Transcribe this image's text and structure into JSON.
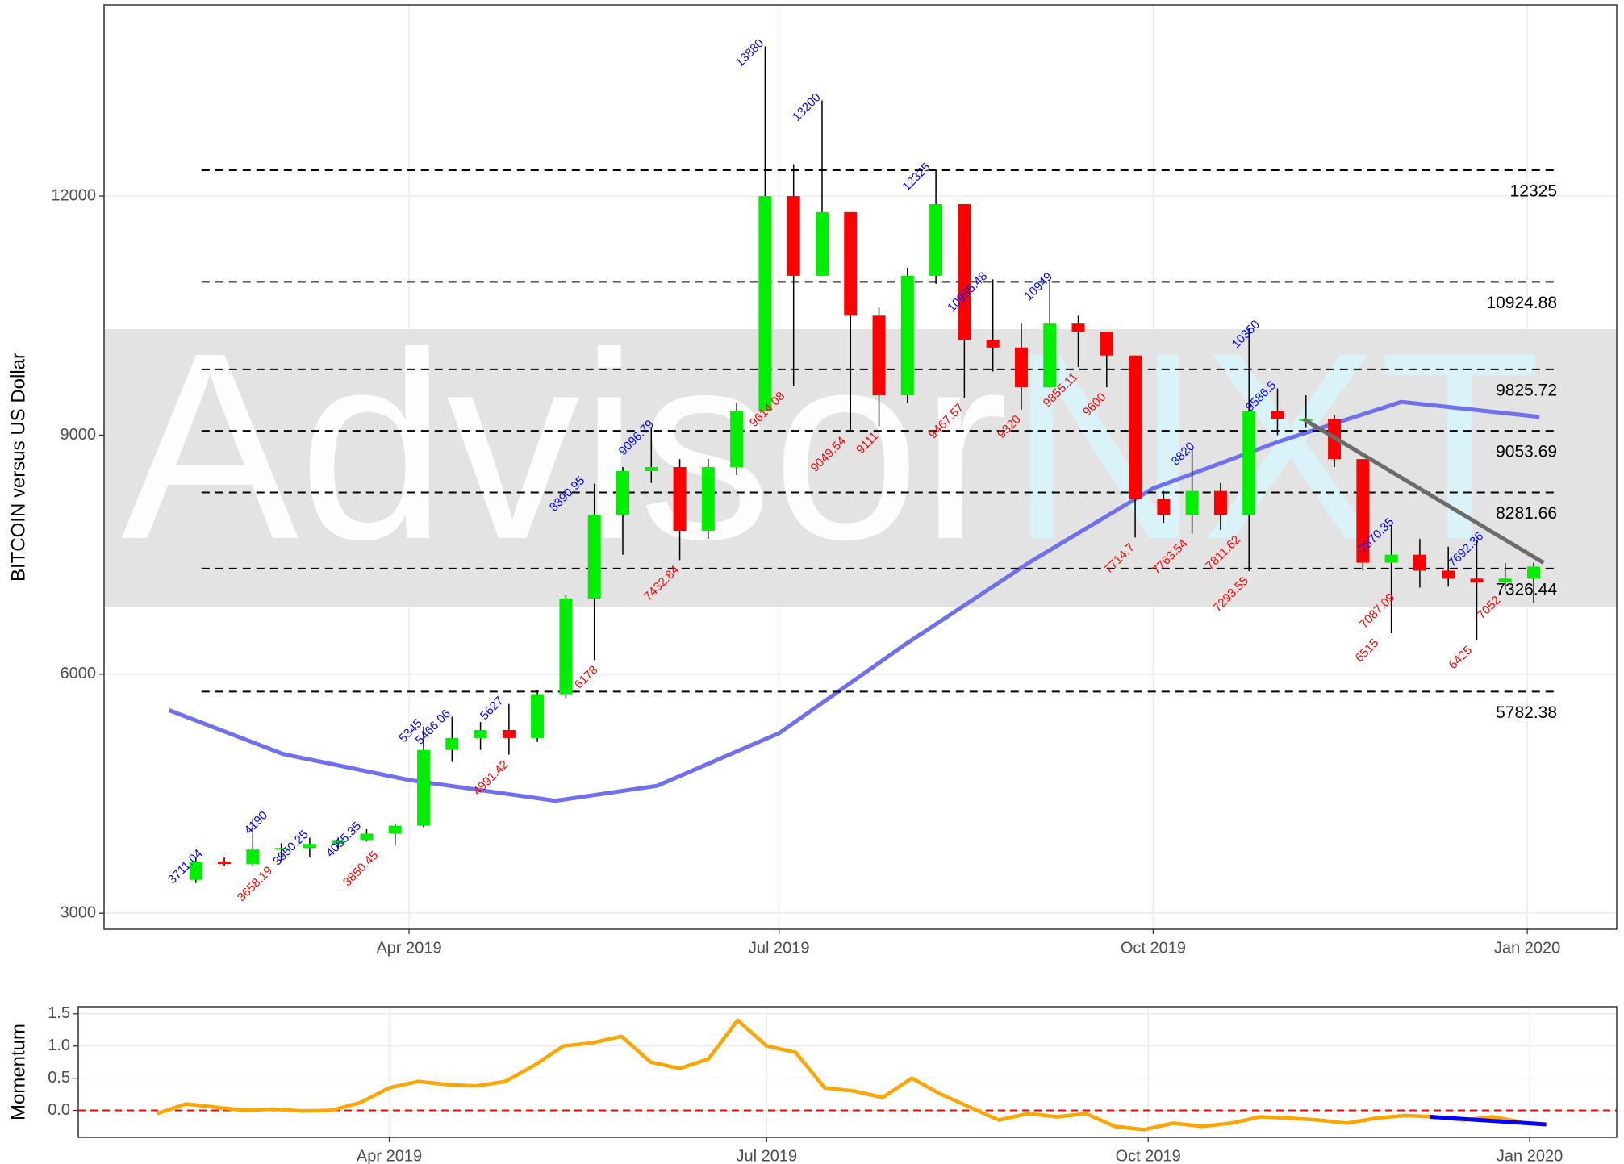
{
  "chart_data": [
    {
      "type": "candlestick",
      "ylabel": "BITCOIN versus US Dollar",
      "watermark": [
        "Advisor",
        "NXT"
      ],
      "x": [
        "2019-02-04",
        "2019-02-11",
        "2019-02-18",
        "2019-02-25",
        "2019-03-04",
        "2019-03-11",
        "2019-03-18",
        "2019-03-25",
        "2019-04-01",
        "2019-04-08",
        "2019-04-15",
        "2019-04-22",
        "2019-04-29",
        "2019-05-06",
        "2019-05-13",
        "2019-05-20",
        "2019-05-27",
        "2019-06-03",
        "2019-06-10",
        "2019-06-17",
        "2019-06-24",
        "2019-07-01",
        "2019-07-08",
        "2019-07-15",
        "2019-07-22",
        "2019-07-29",
        "2019-08-05",
        "2019-08-12",
        "2019-08-19",
        "2019-08-26",
        "2019-09-02",
        "2019-09-09",
        "2019-09-16",
        "2019-09-23",
        "2019-09-30",
        "2019-10-07",
        "2019-10-14",
        "2019-10-21",
        "2019-10-28",
        "2019-11-04",
        "2019-11-11",
        "2019-11-18",
        "2019-11-25",
        "2019-12-02",
        "2019-12-09",
        "2019-12-16",
        "2019-12-23",
        "2019-12-30"
      ],
      "open": [
        3420,
        3650,
        3620,
        3800,
        3820,
        3870,
        3920,
        4000,
        4100,
        5050,
        5200,
        5300,
        5200,
        5750,
        6950,
        8000,
        8550,
        8600,
        7800,
        8600,
        9300,
        12000,
        11000,
        11800,
        10500,
        9500,
        11000,
        11900,
        10200,
        10100,
        9600,
        10400,
        10300,
        10000,
        8200,
        8000,
        8300,
        8000,
        9300,
        9200,
        9200,
        8700,
        7400,
        7500,
        7300,
        7200,
        7150,
        7200
      ],
      "high": [
        3711,
        3700,
        4190,
        3880,
        3950,
        3950,
        4055,
        4120,
        5345,
        5466,
        5400,
        5627,
        5800,
        7000,
        8391,
        8600,
        9097,
        8700,
        8700,
        9400,
        13880,
        12400,
        13200,
        11800,
        10600,
        11100,
        12325,
        11900,
        10955,
        10400,
        10949,
        10500,
        10300,
        10000,
        8300,
        8820,
        8400,
        10350,
        9586,
        9500,
        9250,
        8700,
        7870,
        7700,
        7600,
        7692,
        7400,
        7400
      ],
      "low": [
        3380,
        3590,
        3600,
        3658,
        3700,
        3800,
        3900,
        3850,
        4080,
        4900,
        5050,
        4991,
        5150,
        5700,
        6178,
        7500,
        8400,
        7433,
        7700,
        8500,
        9300,
        9614,
        11000,
        9050,
        9111,
        9400,
        10900,
        9468,
        9800,
        9320,
        9600,
        9855,
        9600,
        7715,
        7900,
        7764,
        7812,
        7294,
        9000,
        9100,
        8600,
        7300,
        6515,
        7087,
        7100,
        6425,
        7052,
        6900
      ],
      "close": [
        3650,
        3620,
        3800,
        3820,
        3870,
        3920,
        4000,
        4100,
        5050,
        5200,
        5300,
        5200,
        5750,
        6950,
        8000,
        8550,
        8600,
        7800,
        8600,
        9300,
        12000,
        11000,
        11800,
        10500,
        9500,
        11000,
        11900,
        10200,
        10100,
        9600,
        10400,
        10300,
        10000,
        8200,
        8000,
        8300,
        8000,
        9300,
        9200,
        9200,
        8700,
        7400,
        7500,
        7300,
        7200,
        7150,
        7200,
        7350
      ],
      "up_color": "#00ee00",
      "down_color": "#ff0000",
      "wick_color": "#000000",
      "xlim": [
        "2019-01-16",
        "2020-01-23"
      ],
      "xticks": [
        {
          "value": "2019-04-01",
          "label": "Apr 2019"
        },
        {
          "value": "2019-07-01",
          "label": "Jul 2019"
        },
        {
          "value": "2019-10-01",
          "label": "Oct 2019"
        },
        {
          "value": "2020-01-01",
          "label": "Jan 2020"
        }
      ],
      "ylim": [
        2800,
        14400
      ],
      "yticks": [
        3000,
        6000,
        9000,
        12000
      ],
      "grid": true,
      "levels": {
        "color": "#000000",
        "values": [
          12325,
          10924.88,
          9825.72,
          9053.69,
          8281.66,
          7326.44,
          5782.38
        ]
      },
      "peaks": {
        "color": "#0000ff",
        "x": [
          "2019-02-08",
          "2019-02-24",
          "2019-03-06",
          "2019-03-19",
          "2019-04-03",
          "2019-04-10",
          "2019-04-23",
          "2019-05-13",
          "2019-05-30",
          "2019-06-26",
          "2019-07-10",
          "2019-08-06",
          "2019-08-20",
          "2019-09-05",
          "2019-10-10",
          "2019-10-26",
          "2019-10-30",
          "2019-11-28",
          "2019-12-20"
        ],
        "values": [
          3711.04,
          4190,
          3950.25,
          4055.35,
          5345,
          5466.06,
          5627,
          8390.95,
          9096.79,
          13880,
          13200,
          12325,
          10955.48,
          10949,
          8820,
          10350,
          9586.5,
          7870.35,
          7692.36
        ]
      },
      "troughs": {
        "color": "#ff0000",
        "x": [
          "2019-02-26",
          "2019-03-24",
          "2019-04-25",
          "2019-05-17",
          "2019-06-06",
          "2019-07-02",
          "2019-07-17",
          "2019-07-25",
          "2019-08-15",
          "2019-08-29",
          "2019-09-12",
          "2019-09-19",
          "2019-09-26",
          "2019-10-09",
          "2019-10-22",
          "2019-10-24",
          "2019-11-25",
          "2019-11-29",
          "2019-12-18",
          "2019-12-25"
        ],
        "values": [
          3658.19,
          3850.45,
          4991.42,
          6178,
          7432.84,
          9614.08,
          9049.54,
          9111,
          9467.57,
          9320,
          9855.11,
          9600,
          7714.7,
          7763.54,
          7811.62,
          7293.55,
          6515,
          7087.09,
          6425,
          7052
        ]
      },
      "moving_average": {
        "color": "#6f6ff0",
        "x": [
          "2019-02-01",
          "2019-03-01",
          "2019-04-01",
          "2019-05-07",
          "2019-06-01",
          "2019-07-01",
          "2019-08-01",
          "2019-09-01",
          "2019-10-01",
          "2019-11-01",
          "2019-12-01",
          "2020-01-04"
        ],
        "values": [
          5549,
          5000,
          4673,
          4412,
          4600,
          5261,
          6373,
          7418,
          8333,
          8922,
          9418,
          9230
        ]
      },
      "trend_line": {
        "color": "#6b6b6b",
        "x": [
          "2019-11-07",
          "2020-01-05"
        ],
        "values": [
          9200,
          7400
        ]
      }
    },
    {
      "type": "line",
      "ylabel": "Momentum",
      "x": [
        "2019-02-04",
        "2019-02-11",
        "2019-02-18",
        "2019-02-25",
        "2019-03-04",
        "2019-03-11",
        "2019-03-18",
        "2019-03-25",
        "2019-04-01",
        "2019-04-08",
        "2019-04-15",
        "2019-04-22",
        "2019-04-29",
        "2019-05-06",
        "2019-05-13",
        "2019-05-20",
        "2019-05-27",
        "2019-06-03",
        "2019-06-10",
        "2019-06-17",
        "2019-06-24",
        "2019-07-01",
        "2019-07-08",
        "2019-07-15",
        "2019-07-22",
        "2019-07-29",
        "2019-08-05",
        "2019-08-12",
        "2019-08-19",
        "2019-08-26",
        "2019-09-02",
        "2019-09-09",
        "2019-09-16",
        "2019-09-23",
        "2019-09-30",
        "2019-10-07",
        "2019-10-14",
        "2019-10-21",
        "2019-10-28",
        "2019-11-04",
        "2019-11-11",
        "2019-11-18",
        "2019-11-25",
        "2019-12-02",
        "2019-12-09",
        "2019-12-16",
        "2019-12-23",
        "2019-12-30"
      ],
      "values": [
        -0.05,
        0.1,
        0.05,
        0.0,
        0.02,
        -0.01,
        0.0,
        0.12,
        0.35,
        0.45,
        0.4,
        0.38,
        0.45,
        0.7,
        1.0,
        1.05,
        1.15,
        0.75,
        0.65,
        0.8,
        1.4,
        1.0,
        0.9,
        0.35,
        0.3,
        0.2,
        0.5,
        0.25,
        0.05,
        -0.15,
        -0.05,
        -0.1,
        -0.05,
        -0.25,
        -0.3,
        -0.2,
        -0.25,
        -0.2,
        -0.1,
        -0.12,
        -0.15,
        -0.2,
        -0.12,
        -0.08,
        -0.1,
        -0.15,
        -0.1,
        -0.18
      ],
      "color": "#ffa500",
      "xlim": [
        "2019-01-16",
        "2020-01-22"
      ],
      "xticks": [
        {
          "value": "2019-04-01",
          "label": "Apr 2019"
        },
        {
          "value": "2019-07-01",
          "label": "Jul 2019"
        },
        {
          "value": "2019-10-01",
          "label": "Oct 2019"
        },
        {
          "value": "2020-01-01",
          "label": "Jan 2020"
        }
      ],
      "ylim": [
        -0.42,
        1.61
      ],
      "yticks": [
        {
          "value": 0,
          "label": "0.0"
        },
        0.5,
        {
          "value": 1,
          "label": "1.0"
        },
        1.5
      ],
      "grid": true,
      "reference_line": {
        "value": 0,
        "color": "#ff0000"
      },
      "trend_line": {
        "color": "#0000ff",
        "x": [
          "2019-12-08",
          "2020-01-05"
        ],
        "values": [
          -0.1,
          -0.22
        ]
      }
    }
  ]
}
